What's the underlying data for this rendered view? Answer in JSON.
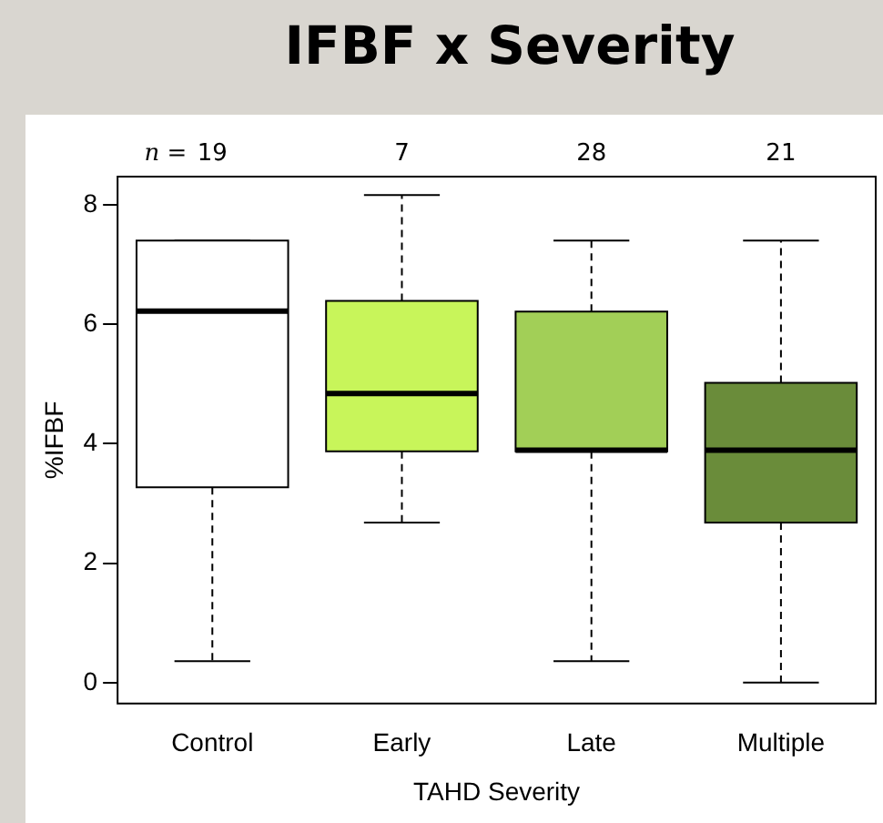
{
  "chart_data": {
    "type": "box",
    "title": "IFBF x Severity",
    "xlabel": "TAHD Severity",
    "ylabel": "%IFBF",
    "categories": [
      "Control",
      "Early",
      "Late",
      "Multiple"
    ],
    "colors": [
      "#ffffff",
      "#c8f55a",
      "#a2cf57",
      "#6a8c3a"
    ],
    "boxes": [
      {
        "low": 0.36,
        "q1": 3.27,
        "median": 6.22,
        "q3": 7.4,
        "high": 7.4
      },
      {
        "low": 2.68,
        "q1": 3.87,
        "median": 4.84,
        "q3": 6.39,
        "high": 8.16
      },
      {
        "low": 0.36,
        "q1": 3.87,
        "median": 3.89,
        "q3": 6.21,
        "high": 7.4
      },
      {
        "low": 0,
        "q1": 2.68,
        "median": 3.89,
        "q3": 5.02,
        "high": 7.4
      }
    ],
    "annotations": [
      "n =",
      "19",
      "7",
      "28",
      "21"
    ],
    "ylim": [
      -0.35,
      8.47
    ],
    "yticks": [
      0,
      2,
      4,
      6,
      8
    ],
    "grid": false,
    "legend": false
  }
}
